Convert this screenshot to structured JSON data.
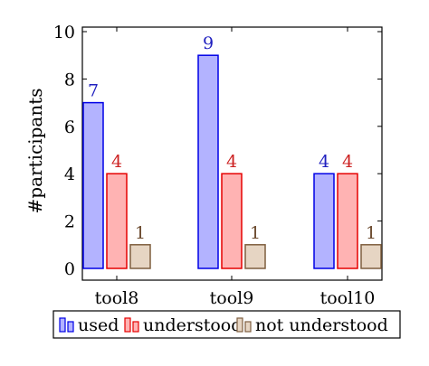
{
  "chart_data": {
    "type": "bar",
    "title": "",
    "xlabel": "",
    "ylabel": "#participants",
    "categories": [
      "tool8",
      "tool9",
      "tool10"
    ],
    "ylim": [
      0,
      10
    ],
    "yticks": [
      0,
      2,
      4,
      6,
      8,
      10
    ],
    "grid": false,
    "legend_position": "bottom",
    "data_labels": true,
    "series": [
      {
        "name": "used",
        "values": [
          7,
          9,
          4
        ],
        "fill": "#b3b3ff",
        "stroke": "#0000e6",
        "label_color": "#1f1fbf"
      },
      {
        "name": "understood",
        "values": [
          4,
          4,
          4
        ],
        "fill": "#ffb3b3",
        "stroke": "#e60000",
        "label_color": "#cc2222"
      },
      {
        "name": "not understood",
        "values": [
          1,
          1,
          1
        ],
        "fill": "#e6d5c3",
        "stroke": "#7f5f3f",
        "label_color": "#6b4a2e"
      }
    ]
  }
}
